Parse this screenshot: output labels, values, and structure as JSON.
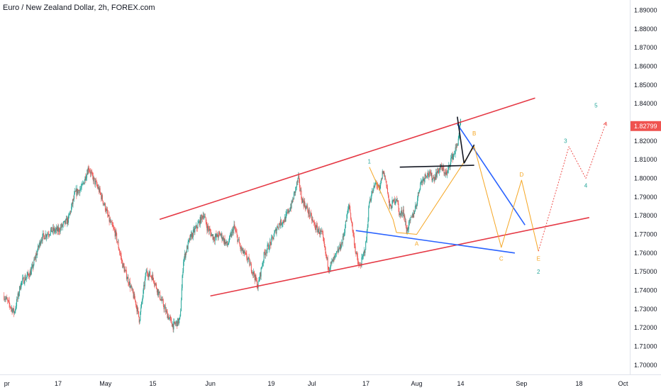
{
  "header": {
    "title": "Euro / New Zealand Dollar, 2h, FOREX.com"
  },
  "chart_data": {
    "type": "candlestick",
    "symbol": "EURNZD",
    "interval": "2h",
    "ylim": [
      1.695,
      1.8955
    ],
    "y_ticks": [
      "1.89000",
      "1.88000",
      "1.87000",
      "1.86000",
      "1.85000",
      "1.84000",
      "1.82799",
      "1.82000",
      "1.81000",
      "1.80000",
      "1.79000",
      "1.78000",
      "1.77000",
      "1.76000",
      "1.75000",
      "1.74000",
      "1.73000",
      "1.72000",
      "1.71000",
      "1.70000"
    ],
    "current_price": "1.82799",
    "x_ticks": [
      {
        "label": "pr",
        "t": 0
      },
      {
        "label": "17",
        "t": 16
      },
      {
        "label": "May",
        "t": 30
      },
      {
        "label": "15",
        "t": 44
      },
      {
        "label": "Jun",
        "t": 61
      },
      {
        "label": "19",
        "t": 79
      },
      {
        "label": "Jul",
        "t": 91
      },
      {
        "label": "17",
        "t": 107
      },
      {
        "label": "Aug",
        "t": 122
      },
      {
        "label": "14",
        "t": 135
      },
      {
        "label": "Sep",
        "t": 153
      },
      {
        "label": "18",
        "t": 170
      },
      {
        "label": "Oct",
        "t": 183
      }
    ],
    "price_path": [
      [
        0,
        1.737
      ],
      [
        3,
        1.728
      ],
      [
        5,
        1.744
      ],
      [
        8,
        1.75
      ],
      [
        11,
        1.768
      ],
      [
        14,
        1.772
      ],
      [
        16,
        1.772
      ],
      [
        19,
        1.778
      ],
      [
        21,
        1.792
      ],
      [
        23,
        1.795
      ],
      [
        25,
        1.806
      ],
      [
        26,
        1.801
      ],
      [
        28,
        1.794
      ],
      [
        30,
        1.784
      ],
      [
        31,
        1.778
      ],
      [
        33,
        1.77
      ],
      [
        35,
        1.754
      ],
      [
        37,
        1.744
      ],
      [
        39,
        1.733
      ],
      [
        40,
        1.724
      ],
      [
        42,
        1.75
      ],
      [
        44,
        1.747
      ],
      [
        46,
        1.737
      ],
      [
        48,
        1.728
      ],
      [
        50,
        1.721
      ],
      [
        52,
        1.724
      ],
      [
        53,
        1.756
      ],
      [
        55,
        1.768
      ],
      [
        57,
        1.774
      ],
      [
        59,
        1.781
      ],
      [
        60,
        1.774
      ],
      [
        62,
        1.768
      ],
      [
        64,
        1.77
      ],
      [
        66,
        1.764
      ],
      [
        68,
        1.774
      ],
      [
        70,
        1.762
      ],
      [
        72,
        1.757
      ],
      [
        74,
        1.748
      ],
      [
        75,
        1.742
      ],
      [
        77,
        1.76
      ],
      [
        79,
        1.766
      ],
      [
        81,
        1.775
      ],
      [
        83,
        1.778
      ],
      [
        85,
        1.786
      ],
      [
        87,
        1.8
      ],
      [
        88,
        1.789
      ],
      [
        90,
        1.782
      ],
      [
        92,
        1.774
      ],
      [
        94,
        1.77
      ],
      [
        95,
        1.76
      ],
      [
        96,
        1.752
      ],
      [
        98,
        1.758
      ],
      [
        100,
        1.766
      ],
      [
        102,
        1.786
      ],
      [
        104,
        1.76
      ],
      [
        105,
        1.752
      ],
      [
        106,
        1.757
      ],
      [
        107,
        1.765
      ],
      [
        108,
        1.788
      ],
      [
        110,
        1.798
      ],
      [
        111,
        1.793
      ],
      [
        112,
        1.804
      ],
      [
        113,
        1.798
      ],
      [
        114,
        1.784
      ],
      [
        116,
        1.79
      ],
      [
        117,
        1.78
      ],
      [
        118,
        1.783
      ],
      [
        119,
        1.772
      ],
      [
        121,
        1.781
      ],
      [
        122,
        1.787
      ],
      [
        123,
        1.797
      ],
      [
        125,
        1.803
      ],
      [
        127,
        1.8
      ],
      [
        129,
        1.806
      ],
      [
        131,
        1.802
      ],
      [
        132,
        1.81
      ],
      [
        133,
        1.813
      ],
      [
        134,
        1.818
      ],
      [
        135,
        1.83
      ]
    ],
    "drawings": {
      "channel_upper": [
        [
          46,
          1.778
        ],
        [
          157,
          1.843
        ]
      ],
      "channel_lower": [
        [
          61,
          1.737
        ],
        [
          173,
          1.779
        ]
      ],
      "blue_upper": [
        [
          134,
          1.829
        ],
        [
          154,
          1.775
        ]
      ],
      "blue_lower": [
        [
          104,
          1.772
        ],
        [
          151,
          1.76
        ]
      ],
      "black_drop": [
        [
          134,
          1.833
        ],
        [
          136,
          1.808
        ]
      ],
      "black_rise": [
        [
          136,
          1.808
        ],
        [
          139,
          1.818
        ]
      ],
      "black_flat": [
        [
          117,
          1.806
        ],
        [
          139,
          1.807
        ]
      ],
      "orange_wave": [
        [
          116,
          1.771
        ],
        [
          122,
          1.77
        ],
        [
          139,
          1.817
        ],
        [
          147,
          1.763
        ],
        [
          153,
          1.799
        ],
        [
          158,
          1.761
        ]
      ],
      "orange_wave_early": [
        [
          108,
          1.806
        ],
        [
          115,
          1.778
        ],
        [
          116,
          1.771
        ]
      ],
      "red_dotted_projection": [
        [
          158,
          1.761
        ],
        [
          167,
          1.817
        ],
        [
          172,
          1.8
        ],
        [
          178,
          1.83
        ]
      ]
    },
    "wave_labels": [
      {
        "text": "1",
        "t": 108,
        "v": 1.808,
        "color": "teal"
      },
      {
        "text": "A",
        "t": 122,
        "v": 1.764,
        "color": "orange"
      },
      {
        "text": "B",
        "t": 139,
        "v": 1.823,
        "color": "orange"
      },
      {
        "text": "C",
        "t": 147,
        "v": 1.756,
        "color": "orange"
      },
      {
        "text": "D",
        "t": 153,
        "v": 1.801,
        "color": "orange"
      },
      {
        "text": "E",
        "t": 158,
        "v": 1.756,
        "color": "orange"
      },
      {
        "text": "2",
        "t": 158,
        "v": 1.749,
        "color": "teal"
      },
      {
        "text": "3",
        "t": 166,
        "v": 1.819,
        "color": "teal"
      },
      {
        "text": "4",
        "t": 172,
        "v": 1.795,
        "color": "teal"
      },
      {
        "text": "5",
        "t": 175,
        "v": 1.838,
        "color": "teal"
      }
    ],
    "colors": {
      "up": "#26a69a",
      "down": "#ef5350",
      "channel": "#e53945",
      "blue": "#2962ff",
      "orange": "#f5a623",
      "black": "#131722",
      "teal": "#26a69a",
      "projection": "#ef5350",
      "price_tag": "#ef5350"
    }
  }
}
